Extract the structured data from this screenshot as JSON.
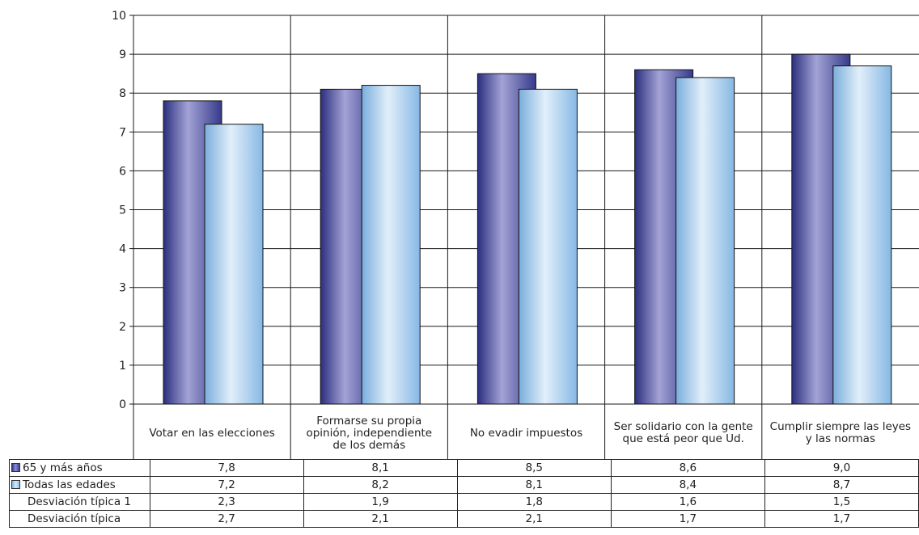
{
  "chart_data": {
    "type": "bar",
    "ylim": [
      0,
      10
    ],
    "yticks": [
      "0",
      "1",
      "2",
      "3",
      "4",
      "5",
      "6",
      "7",
      "8",
      "9",
      "10"
    ],
    "categories": [
      "Votar en las elecciones",
      "Formarse su propia opinión, independiente de los demás",
      "No evadir impuestos",
      "Ser solidario con la gente que está peor que Ud.",
      "Cumplir siempre las leyes y las normas"
    ],
    "category_lines": [
      [
        "Votar en las elecciones"
      ],
      [
        "Formarse su propia",
        "opinión, independiente",
        "de los demás"
      ],
      [
        "No evadir impuestos"
      ],
      [
        "Ser solidario con la gente",
        "que está peor que Ud."
      ],
      [
        "Cumplir siempre las leyes",
        "y las normas"
      ]
    ],
    "series": [
      {
        "name": "65 y más años",
        "values": [
          7.8,
          8.1,
          8.5,
          8.6,
          9.0
        ],
        "labels": [
          "7,8",
          "8,1",
          "8,5",
          "8,6",
          "9,0"
        ],
        "color": "#4a4e9c"
      },
      {
        "name": "Todas las edades",
        "values": [
          7.2,
          8.2,
          8.1,
          8.4,
          8.7
        ],
        "labels": [
          "7,2",
          "8,2",
          "8,1",
          "8,4",
          "8,7"
        ],
        "color": "#a9cdf0"
      }
    ],
    "extra_rows": [
      {
        "name": "Desviación típica 1",
        "labels": [
          "2,3",
          "1,9",
          "1,8",
          "1,6",
          "1,5"
        ]
      },
      {
        "name": "Desviación típica",
        "labels": [
          "2,7",
          "2,1",
          "2,1",
          "1,7",
          "1,7"
        ]
      }
    ],
    "grid": true,
    "legend": "table"
  }
}
